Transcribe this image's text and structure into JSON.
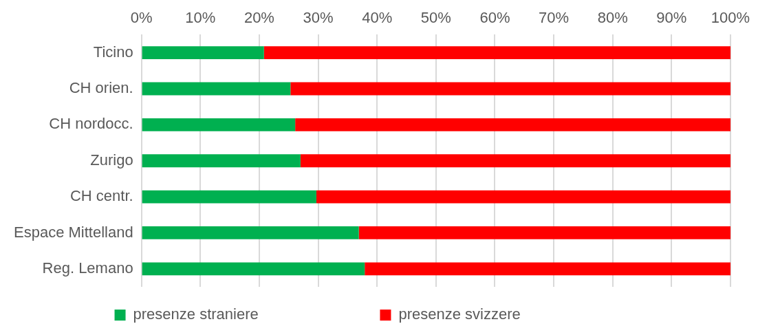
{
  "chart_data": {
    "type": "bar",
    "orientation": "horizontal",
    "stacked": true,
    "categories": [
      "Ticino",
      "CH orien.",
      "CH nordocc.",
      "Zurigo",
      "CH centr.",
      "Espace Mittelland",
      "Reg. Lemano"
    ],
    "series": [
      {
        "name": "presenze straniere",
        "color": "#00b050",
        "values": [
          20.8,
          25.3,
          26.1,
          27.0,
          29.7,
          36.9,
          37.9
        ]
      },
      {
        "name": "presenze svizzere",
        "color": "#ff0000",
        "values": [
          79.2,
          74.7,
          73.9,
          73.0,
          70.3,
          63.1,
          62.1
        ]
      }
    ],
    "xlim": [
      0,
      100
    ],
    "xticks": [
      {
        "value": 0,
        "label": "0%"
      },
      {
        "value": 10,
        "label": "10%"
      },
      {
        "value": 20,
        "label": "20%"
      },
      {
        "value": 30,
        "label": "30%"
      },
      {
        "value": 40,
        "label": "40%"
      },
      {
        "value": 50,
        "label": "50%"
      },
      {
        "value": 60,
        "label": "60%"
      },
      {
        "value": 70,
        "label": "70%"
      },
      {
        "value": 80,
        "label": "80%"
      },
      {
        "value": 90,
        "label": "90%"
      },
      {
        "value": 100,
        "label": "100%"
      }
    ],
    "grid": "x",
    "legend": "bottom"
  }
}
